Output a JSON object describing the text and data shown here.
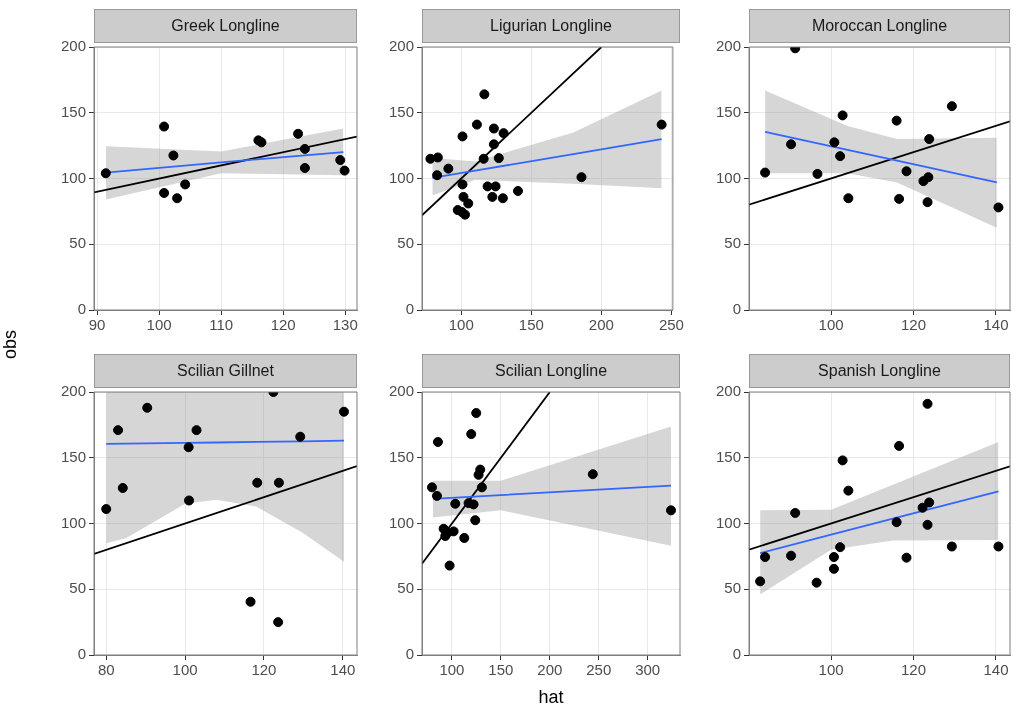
{
  "chart_data": [
    {
      "type": "scatter",
      "title": "Greek Longline",
      "xlim": [
        89.5,
        131.9
      ],
      "xticks": [
        90,
        100,
        110,
        120,
        130
      ],
      "ylim": [
        0,
        200
      ],
      "yticks": [
        0,
        50,
        100,
        150,
        200
      ],
      "grid": true,
      "legend": false,
      "series": [
        {
          "marker": "circle",
          "color": "#000000",
          "x": [
            91.4,
            100.8,
            100.8,
            102.3,
            102.9,
            104.2,
            116,
            116.5,
            122.4,
            123.5,
            123.5,
            129.2,
            129.9
          ],
          "values": [
            104,
            139.5,
            89,
            117.5,
            85,
            95.5,
            129,
            127.5,
            134,
            122.5,
            108,
            114,
            106
          ]
        },
        {
          "type": "line",
          "color": "#3366ff",
          "x": [
            91.4,
            110,
            129.7
          ],
          "values": [
            104.5,
            112.3,
            120
          ],
          "lower": [
            84,
            104,
            102.5
          ],
          "upper": [
            124.5,
            120.5,
            138
          ]
        },
        {
          "type": "line",
          "color": "#000000",
          "x": [
            89.5,
            131.9
          ],
          "values": [
            89.5,
            131.9
          ]
        }
      ]
    },
    {
      "type": "scatter",
      "title": "Ligurian Longline",
      "xlim": [
        72,
        251
      ],
      "xticks": [
        100,
        150,
        200,
        250
      ],
      "ylim": [
        0,
        200
      ],
      "yticks": [
        0,
        50,
        100,
        150,
        200
      ],
      "grid": true,
      "legend": false,
      "series": [
        {
          "marker": "circle",
          "color": "#000000",
          "x": [
            78,
            83.3,
            82.8,
            90.8,
            100.9,
            100.9,
            101.6,
            97.5,
            100.5,
            102.7,
            105,
            116.5,
            111.2,
            116,
            123.3,
            123.3,
            126.8,
            118.8,
            124.5,
            122.2,
            129.7,
            130.2,
            140.5,
            185.8,
            243
          ],
          "values": [
            115,
            116,
            102.5,
            107.5,
            132,
            95.5,
            86,
            76,
            74.5,
            72.5,
            81,
            164,
            141,
            115,
            138,
            126,
            115.5,
            94,
            94,
            86,
            85,
            134.5,
            90.5,
            101,
            141
          ]
        },
        {
          "type": "line",
          "color": "#3366ff",
          "x": [
            79.4,
            110,
            180,
            243
          ],
          "values": [
            100.5,
            106,
            118.6,
            130
          ],
          "lower": [
            87,
            99,
            96,
            92.5
          ],
          "upper": [
            115.5,
            113,
            135,
            167
          ]
        },
        {
          "type": "line",
          "color": "#000000",
          "x": [
            72,
            200
          ],
          "values": [
            72,
            200
          ]
        }
      ]
    },
    {
      "type": "scatter",
      "title": "Moroccan Longline",
      "xlim": [
        80.1,
        143.4
      ],
      "xticks": [
        100,
        120,
        140
      ],
      "ylim": [
        0,
        200
      ],
      "yticks": [
        0,
        50,
        100,
        150,
        200
      ],
      "grid": true,
      "legend": false,
      "series": [
        {
          "marker": "circle",
          "color": "#000000",
          "x": [
            84,
            91.3,
            90.3,
            96.7,
            100.8,
            102.2,
            102.8,
            104.2,
            115.9,
            116.5,
            118.3,
            122.4,
            123.6,
            123.8,
            123.4,
            129.3,
            140.6
          ],
          "values": [
            104.5,
            199,
            126,
            103.5,
            127.5,
            117,
            148,
            85,
            144,
            84.5,
            105.5,
            98,
            101,
            130,
            82,
            155,
            78
          ]
        },
        {
          "type": "line",
          "color": "#3366ff",
          "x": [
            84,
            104,
            116,
            140.2
          ],
          "values": [
            135.5,
            121.8,
            113.6,
            97
          ],
          "lower": [
            104,
            104,
            97,
            62.5
          ],
          "upper": [
            167,
            140,
            130,
            131
          ]
        },
        {
          "type": "line",
          "color": "#000000",
          "x": [
            80.1,
            143.4
          ],
          "values": [
            80.1,
            143.4
          ]
        }
      ]
    },
    {
      "type": "scatter",
      "title": "Scilian Gillnet",
      "ylabel": "obs",
      "xlim": [
        76.9,
        143.6
      ],
      "xticks": [
        80,
        100,
        120,
        140
      ],
      "ylim": [
        0,
        200
      ],
      "yticks": [
        0,
        50,
        100,
        150,
        200
      ],
      "grid": true,
      "legend": false,
      "series": [
        {
          "marker": "circle",
          "color": "#000000",
          "x": [
            80,
            83,
            84.2,
            90.4,
            100.9,
            101,
            102.9,
            122.4,
            118.3,
            123.8,
            129.2,
            140.3,
            116.6,
            123.6
          ],
          "values": [
            111,
            171,
            127,
            188,
            158,
            117.5,
            171,
            200,
            131,
            131,
            166,
            185,
            40.5,
            25
          ]
        },
        {
          "type": "line",
          "color": "#3366ff",
          "x": [
            80,
            85,
            100,
            108,
            118,
            130,
            140.3
          ],
          "values": [
            160.5,
            160.7,
            161.3,
            161.6,
            162,
            162.5,
            163
          ],
          "lower": [
            85,
            88.8,
            115,
            118,
            113,
            92.5,
            71
          ],
          "upper": [
            200,
            200,
            200,
            200,
            200,
            200,
            200
          ]
        },
        {
          "type": "line",
          "color": "#000000",
          "x": [
            76.9,
            143.6
          ],
          "values": [
            76.9,
            143.6
          ]
        }
      ]
    },
    {
      "type": "scatter",
      "title": "Scilian Longline",
      "xlabel": "hat",
      "xlim": [
        69.4,
        333
      ],
      "xticks": [
        100,
        150,
        200,
        250,
        300
      ],
      "ylim": [
        0,
        200
      ],
      "yticks": [
        0,
        50,
        100,
        150,
        200
      ],
      "grid": true,
      "legend": false,
      "series": [
        {
          "marker": "circle",
          "color": "#000000",
          "x": [
            79.6,
            84.7,
            85.7,
            91.5,
            93.2,
            95.6,
            103.4,
            101.7,
            97.6,
            112.6,
            124.8,
            119.7,
            123.8,
            128.9,
            127.2,
            122.1,
            130.6,
            117,
            243.9,
            323.8
          ],
          "values": [
            127.5,
            121,
            162,
            96,
            90.5,
            93,
            115,
            94,
            68,
            89,
            184,
            168,
            102.5,
            141,
            137,
            114.5,
            127.5,
            115.5,
            137.5,
            110
          ]
        },
        {
          "type": "line",
          "color": "#3366ff",
          "x": [
            80.6,
            150,
            323.8
          ],
          "values": [
            118.8,
            121.6,
            128.8
          ],
          "lower": [
            104.5,
            110,
            83
          ],
          "upper": [
            132.5,
            132.5,
            173.8
          ]
        },
        {
          "type": "line",
          "color": "#000000",
          "x": [
            69.4,
            200
          ],
          "values": [
            69.4,
            200
          ]
        }
      ]
    },
    {
      "type": "scatter",
      "title": "Spanish Longline",
      "xlim": [
        80.1,
        143.4
      ],
      "xticks": [
        100,
        120,
        140
      ],
      "ylim": [
        0,
        200
      ],
      "yticks": [
        0,
        50,
        100,
        150,
        200
      ],
      "grid": true,
      "legend": false,
      "series": [
        {
          "marker": "circle",
          "color": "#000000",
          "x": [
            82.8,
            84,
            91.3,
            90.3,
            96.5,
            100.7,
            100.7,
            102.2,
            102.8,
            104.2,
            115.9,
            116.5,
            118.3,
            122.2,
            123.8,
            123.4,
            123.4,
            129.3,
            140.6
          ],
          "values": [
            56,
            74.5,
            108,
            75.5,
            55,
            74.5,
            65.5,
            82,
            148,
            125,
            101,
            159,
            74,
            112,
            116,
            99,
            191,
            82.5,
            82.5
          ]
        },
        {
          "type": "line",
          "color": "#3366ff",
          "x": [
            82.8,
            100,
            115,
            140.6
          ],
          "values": [
            77.5,
            91.5,
            103.7,
            124.5
          ],
          "lower": [
            46,
            80,
            87,
            87.5
          ],
          "upper": [
            110,
            110.5,
            129.5,
            162
          ]
        },
        {
          "type": "line",
          "color": "#000000",
          "x": [
            80.1,
            143.4
          ],
          "values": [
            80.1,
            143.4
          ]
        }
      ]
    }
  ]
}
